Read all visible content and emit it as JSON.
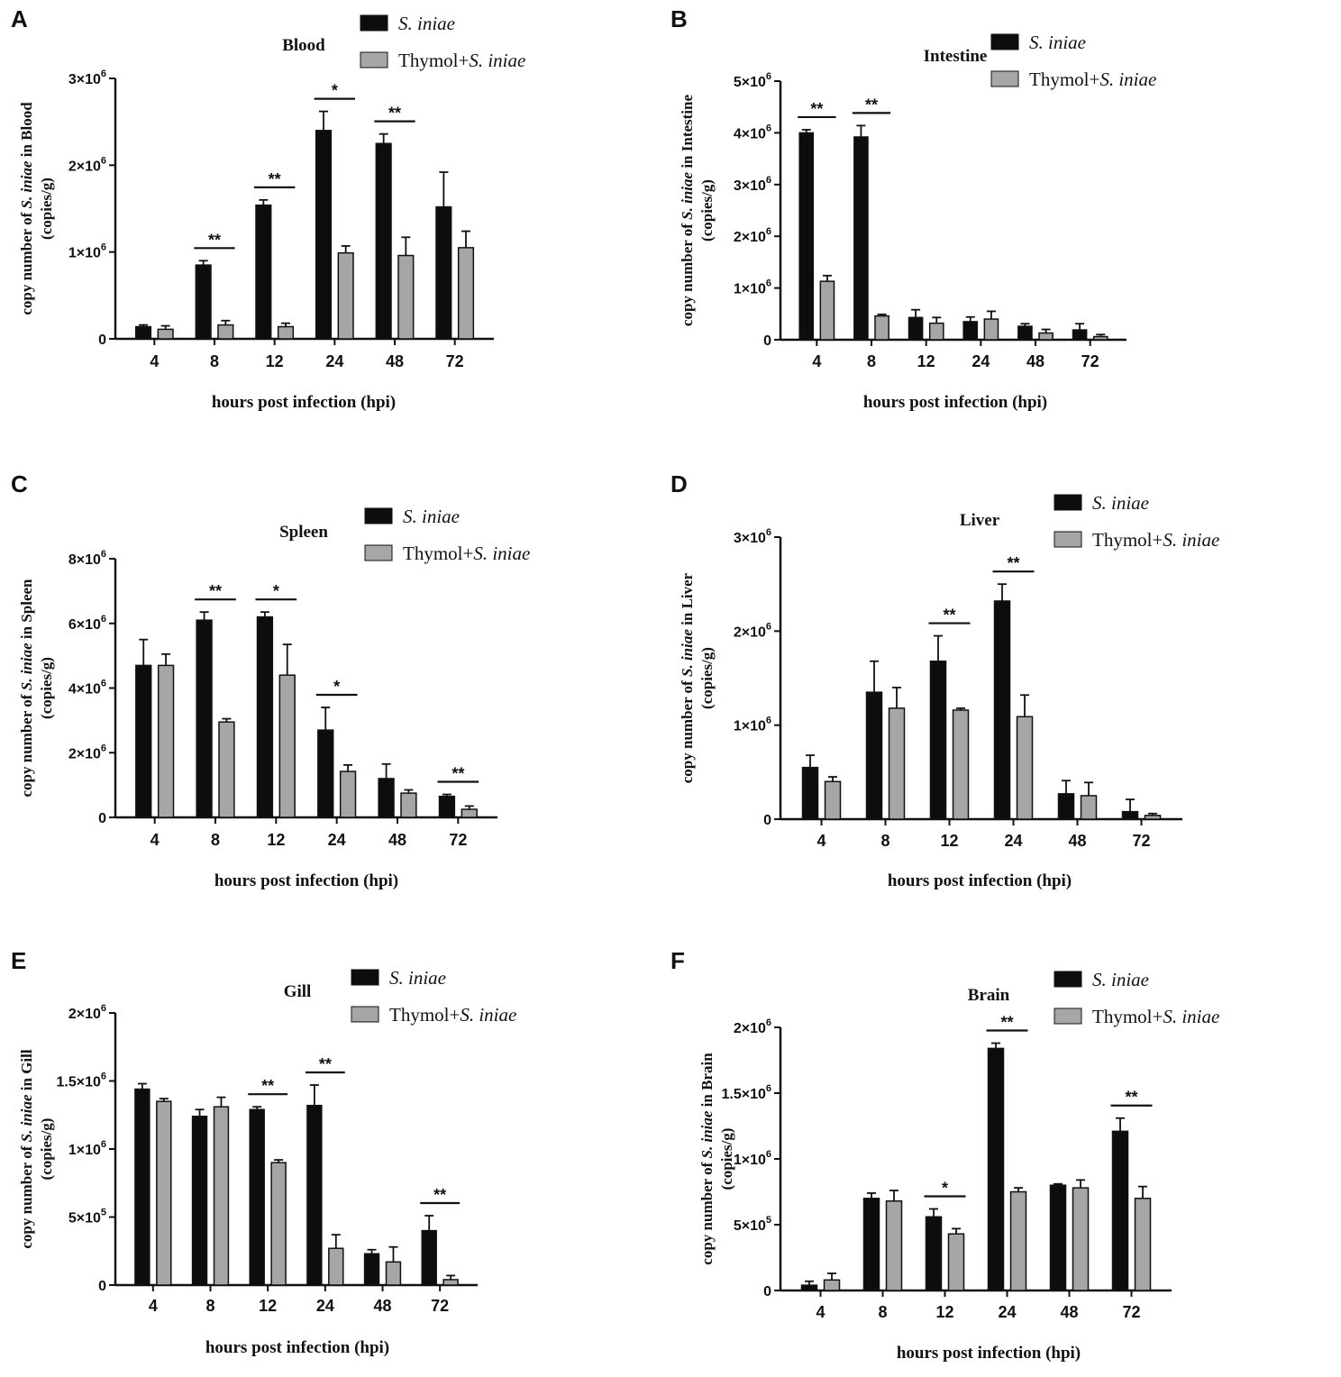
{
  "figure": {
    "legend": {
      "series1": "S. iniae",
      "series2_prefix": "Thymol+",
      "series2_species": "S. iniae"
    },
    "colors": {
      "series1": "#0d0d0d",
      "series2": "#a6a6a6",
      "axis": "#111111"
    }
  },
  "chart_data": [
    {
      "panel": "A",
      "type": "bar",
      "title": "Blood",
      "xlabel": "hours post infection  (hpi)",
      "ylabel_line1_prefix": "copy number of ",
      "ylabel_line1_species": "S. iniae",
      "ylabel_line1_suffix": " in Blood",
      "ylabel_line2": "(copies/g)",
      "categories": [
        "4",
        "8",
        "12",
        "24",
        "48",
        "72"
      ],
      "ylim": [
        0,
        3000000
      ],
      "yticks": [
        {
          "value": 0,
          "mant": "0",
          "exp": ""
        },
        {
          "value": 1000000,
          "mant": "1×10",
          "exp": "6"
        },
        {
          "value": 2000000,
          "mant": "2×10",
          "exp": "6"
        },
        {
          "value": 3000000,
          "mant": "3×10",
          "exp": "6"
        }
      ],
      "series": [
        {
          "name": "S. iniae",
          "values": [
            140000,
            850000,
            1540000,
            2400000,
            2250000,
            1520000
          ],
          "errors": [
            20000,
            50000,
            60000,
            220000,
            110000,
            400000
          ]
        },
        {
          "name": "Thymol+S. iniae",
          "values": [
            110000,
            160000,
            140000,
            990000,
            960000,
            1050000
          ],
          "errors": [
            40000,
            50000,
            40000,
            80000,
            210000,
            190000
          ]
        }
      ],
      "significance": [
        {
          "index": 1,
          "label": "**"
        },
        {
          "index": 2,
          "label": "**"
        },
        {
          "index": 3,
          "label": "*"
        },
        {
          "index": 4,
          "label": "**"
        }
      ]
    },
    {
      "panel": "B",
      "type": "bar",
      "title": "Intestine",
      "xlabel": "hours post infection  (hpi)",
      "ylabel_line1_prefix": "copy number of ",
      "ylabel_line1_species": "S. iniae",
      "ylabel_line1_suffix": " in Intestine",
      "ylabel_line2": "(copies/g)",
      "categories": [
        "4",
        "8",
        "12",
        "24",
        "48",
        "72"
      ],
      "ylim": [
        0,
        5000000
      ],
      "yticks": [
        {
          "value": 0,
          "mant": "0",
          "exp": ""
        },
        {
          "value": 1000000,
          "mant": "1×10",
          "exp": "6"
        },
        {
          "value": 2000000,
          "mant": "2×10",
          "exp": "6"
        },
        {
          "value": 3000000,
          "mant": "3×10",
          "exp": "6"
        },
        {
          "value": 4000000,
          "mant": "4×10",
          "exp": "6"
        },
        {
          "value": 5000000,
          "mant": "5×10",
          "exp": "6"
        }
      ],
      "series": [
        {
          "name": "S. iniae",
          "values": [
            4000000,
            3920000,
            430000,
            350000,
            260000,
            190000
          ],
          "errors": [
            60000,
            220000,
            150000,
            90000,
            50000,
            120000
          ]
        },
        {
          "name": "Thymol+S. iniae",
          "values": [
            1130000,
            460000,
            320000,
            400000,
            130000,
            60000
          ],
          "errors": [
            110000,
            30000,
            110000,
            150000,
            70000,
            40000
          ]
        }
      ],
      "significance": [
        {
          "index": 0,
          "label": "**"
        },
        {
          "index": 1,
          "label": "**"
        }
      ]
    },
    {
      "panel": "C",
      "type": "bar",
      "title": "Spleen",
      "xlabel": "hours post infection  (hpi)",
      "ylabel_line1_prefix": "copy number of ",
      "ylabel_line1_species": "S. iniae",
      "ylabel_line1_suffix": " in Spleen",
      "ylabel_line2": "(copies/g)",
      "categories": [
        "4",
        "8",
        "12",
        "24",
        "48",
        "72"
      ],
      "ylim": [
        0,
        8000000
      ],
      "yticks": [
        {
          "value": 0,
          "mant": "0",
          "exp": ""
        },
        {
          "value": 2000000,
          "mant": "2×10",
          "exp": "6"
        },
        {
          "value": 4000000,
          "mant": "4×10",
          "exp": "6"
        },
        {
          "value": 6000000,
          "mant": "6×10",
          "exp": "6"
        },
        {
          "value": 8000000,
          "mant": "8×10",
          "exp": "6"
        }
      ],
      "series": [
        {
          "name": "S. iniae",
          "values": [
            4700000,
            6100000,
            6200000,
            2700000,
            1200000,
            650000
          ],
          "errors": [
            800000,
            250000,
            150000,
            700000,
            450000,
            60000
          ]
        },
        {
          "name": "Thymol+S. iniae",
          "values": [
            4700000,
            2950000,
            4400000,
            1420000,
            750000,
            250000
          ],
          "errors": [
            350000,
            100000,
            950000,
            200000,
            100000,
            100000
          ]
        }
      ],
      "significance": [
        {
          "index": 1,
          "label": "**"
        },
        {
          "index": 2,
          "label": "*"
        },
        {
          "index": 3,
          "label": "*"
        },
        {
          "index": 5,
          "label": "**"
        }
      ]
    },
    {
      "panel": "D",
      "type": "bar",
      "title": "Liver",
      "xlabel": "hours post infection  (hpi)",
      "ylabel_line1_prefix": "copy number of ",
      "ylabel_line1_species": "S. iniae",
      "ylabel_line1_suffix": " in Liver",
      "ylabel_line2": "(copies/g)",
      "categories": [
        "4",
        "8",
        "12",
        "24",
        "48",
        "72"
      ],
      "ylim": [
        0,
        3000000
      ],
      "yticks": [
        {
          "value": 0,
          "mant": "0",
          "exp": ""
        },
        {
          "value": 1000000,
          "mant": "1×10",
          "exp": "6"
        },
        {
          "value": 2000000,
          "mant": "2×10",
          "exp": "6"
        },
        {
          "value": 3000000,
          "mant": "3×10",
          "exp": "6"
        }
      ],
      "series": [
        {
          "name": "S. iniae",
          "values": [
            550000,
            1350000,
            1680000,
            2320000,
            270000,
            80000
          ],
          "errors": [
            130000,
            330000,
            270000,
            180000,
            140000,
            130000
          ]
        },
        {
          "name": "Thymol+S. iniae",
          "values": [
            400000,
            1180000,
            1160000,
            1090000,
            250000,
            40000
          ],
          "errors": [
            50000,
            220000,
            20000,
            230000,
            140000,
            20000
          ]
        }
      ],
      "significance": [
        {
          "index": 2,
          "label": "**"
        },
        {
          "index": 3,
          "label": "**"
        }
      ]
    },
    {
      "panel": "E",
      "type": "bar",
      "title": "Gill",
      "xlabel": "hours post infection  (hpi)",
      "ylabel_line1_prefix": "copy number of ",
      "ylabel_line1_species": "S. iniae",
      "ylabel_line1_suffix": " in Gill",
      "ylabel_line2": "(copies/g)",
      "categories": [
        "4",
        "8",
        "12",
        "24",
        "48",
        "72"
      ],
      "ylim": [
        0,
        2000000
      ],
      "yticks": [
        {
          "value": 0,
          "mant": "0",
          "exp": ""
        },
        {
          "value": 500000,
          "mant": "5×10",
          "exp": "5"
        },
        {
          "value": 1000000,
          "mant": "1×10",
          "exp": "6"
        },
        {
          "value": 1500000,
          "mant": "1.5×10",
          "exp": "6"
        },
        {
          "value": 2000000,
          "mant": "2×10",
          "exp": "6"
        }
      ],
      "series": [
        {
          "name": "S. iniae",
          "values": [
            1440000,
            1240000,
            1290000,
            1320000,
            230000,
            400000
          ],
          "errors": [
            40000,
            50000,
            20000,
            150000,
            30000,
            110000
          ]
        },
        {
          "name": "Thymol+S. iniae",
          "values": [
            1350000,
            1310000,
            900000,
            270000,
            170000,
            40000
          ],
          "errors": [
            20000,
            70000,
            20000,
            100000,
            110000,
            30000
          ]
        }
      ],
      "significance": [
        {
          "index": 2,
          "label": "**"
        },
        {
          "index": 3,
          "label": "**"
        },
        {
          "index": 5,
          "label": "**"
        }
      ]
    },
    {
      "panel": "F",
      "type": "bar",
      "title": "Brain",
      "xlabel": "hours post infection  (hpi)",
      "ylabel_line1_prefix": "copy number of ",
      "ylabel_line1_species": "S. iniae",
      "ylabel_line1_suffix": " in Brain",
      "ylabel_line2": "(copies/g)",
      "categories": [
        "4",
        "8",
        "12",
        "24",
        "48",
        "72"
      ],
      "ylim": [
        0,
        2000000
      ],
      "yticks": [
        {
          "value": 0,
          "mant": "0",
          "exp": ""
        },
        {
          "value": 500000,
          "mant": "5×10",
          "exp": "5"
        },
        {
          "value": 1000000,
          "mant": "1×10",
          "exp": "6"
        },
        {
          "value": 1500000,
          "mant": "1.5×10",
          "exp": "6"
        },
        {
          "value": 2000000,
          "mant": "2×10",
          "exp": "6"
        }
      ],
      "series": [
        {
          "name": "S. iniae",
          "values": [
            40000,
            700000,
            560000,
            1840000,
            800000,
            1210000
          ],
          "errors": [
            30000,
            40000,
            60000,
            40000,
            10000,
            100000
          ]
        },
        {
          "name": "Thymol+S. iniae",
          "values": [
            80000,
            680000,
            430000,
            750000,
            780000,
            700000
          ],
          "errors": [
            50000,
            80000,
            40000,
            30000,
            60000,
            90000
          ]
        }
      ],
      "significance": [
        {
          "index": 2,
          "label": "*"
        },
        {
          "index": 3,
          "label": "**"
        },
        {
          "index": 5,
          "label": "**"
        }
      ]
    }
  ]
}
